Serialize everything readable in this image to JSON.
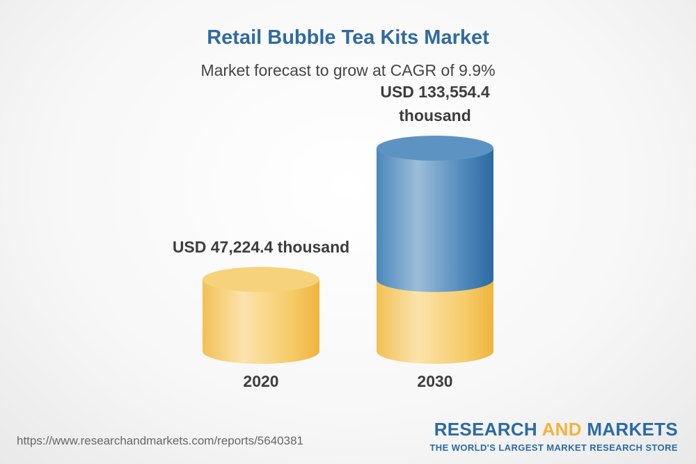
{
  "chart_data": {
    "type": "bar",
    "title": "Retail Bubble Tea Kits Market",
    "subtitle": "Market forecast to grow at CAGR of 9.9%",
    "categories": [
      "2020",
      "2030"
    ],
    "values": [
      47224.4,
      133554.4
    ],
    "value_labels": [
      "USD 47,224.4 thousand",
      "USD 133,554.4 thousand"
    ],
    "value_label_lines": [
      [
        "USD 47,224.4 thousand"
      ],
      [
        "USD 133,554.4",
        "thousand"
      ]
    ],
    "ylim": [
      0,
      133554.4
    ],
    "grid": false,
    "colors": {
      "base": "#f2c15a",
      "growth": "#3f7db5",
      "title": "#2e6aa2"
    }
  },
  "footer": {
    "url": "https://www.researchandmarkets.com/reports/5640381",
    "logo_part1": "RESEARCH ",
    "logo_part2": "AND",
    "logo_part3": " MARKETS",
    "tagline": "THE WORLD'S LARGEST MARKET RESEARCH STORE"
  }
}
